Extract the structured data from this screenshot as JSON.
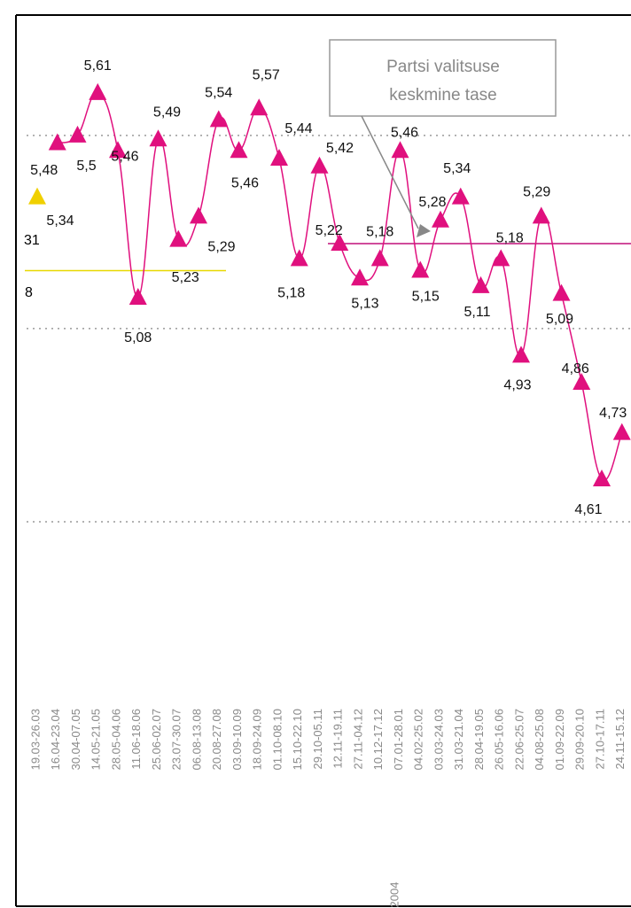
{
  "chart_data": {
    "type": "line",
    "categories": [
      "19.03-26.03",
      "16.04-23.04",
      "30.04-07.05",
      "14.05-21.05",
      "28.05-04.06",
      "11.06-18.06",
      "25.06-02.07",
      "23.07-30.07",
      "06.08-13.08",
      "20.08-27.08",
      "03.09-10.09",
      "18.09-24.09",
      "01.10-08.10",
      "15.10-22.10",
      "29.10-05.11",
      "12.11-19.11",
      "27.11-04.12",
      "10.12-17.12",
      "07.01-28.01",
      "04.02-25.02",
      "03.03-24.03",
      "31.03-21.04",
      "28.04-19.05",
      "26.05-16.06",
      "22.06-25.07",
      "04.08-25.08",
      "01.09-22.09",
      "29.09-20.10",
      "27.10-17.11",
      "24.11-15.12"
    ],
    "x_group_label": "2004",
    "series": [
      {
        "color": "#f0d000",
        "values": [
          5.34,
          null,
          null,
          null,
          null,
          null,
          null,
          null,
          null,
          null,
          null,
          null,
          null,
          null,
          null,
          null,
          null,
          null,
          null,
          null,
          null,
          null,
          null,
          null,
          null,
          null,
          null,
          null,
          null,
          null
        ],
        "value_labels": [
          "5,34",
          null,
          null,
          null,
          null,
          null,
          null,
          null,
          null,
          null,
          null,
          null,
          null,
          null,
          null,
          null,
          null,
          null,
          null,
          null,
          null,
          null,
          null,
          null,
          null,
          null,
          null,
          null,
          null,
          null
        ]
      },
      {
        "color": "#e0107e",
        "values": [
          null,
          5.48,
          5.5,
          5.61,
          5.46,
          5.08,
          5.49,
          5.23,
          5.29,
          5.54,
          5.46,
          5.57,
          5.44,
          5.18,
          5.42,
          5.22,
          5.13,
          5.18,
          5.46,
          5.15,
          5.28,
          5.34,
          5.11,
          5.18,
          4.93,
          5.29,
          5.09,
          4.86,
          4.61,
          4.73
        ],
        "value_labels": [
          null,
          "5,48",
          "5,5",
          "5,61",
          "5,46",
          "5,08",
          "5,49",
          "5,23",
          "5,29",
          "5,54",
          "5,46",
          "5,57",
          "5,44",
          "5,18",
          "5,42",
          "5,22",
          "5,13",
          "5,18",
          "5,46",
          "5,15",
          "5,28",
          "5,34",
          "5,11",
          "5,18",
          "4,93",
          "5,29",
          "5,09",
          "4,86",
          "4,61",
          "4,73"
        ]
      }
    ],
    "reference_lines": [
      {
        "value": 5.15,
        "color": "#e8d800"
      },
      {
        "value": 5.22,
        "color": "#c0107a"
      }
    ],
    "partial_labels": [
      "31",
      "8"
    ],
    "annotation": {
      "lines": [
        "Partsi valitsuse",
        "keskmine tase"
      ]
    },
    "ylim": [
      4.0,
      5.8
    ],
    "yticks": [
      4.5,
      5.0,
      5.5
    ],
    "grid": true
  }
}
